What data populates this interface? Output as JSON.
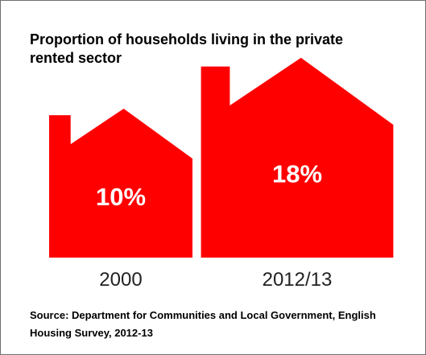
{
  "chart_data": {
    "type": "pictogram",
    "title": "Proportion of households living in the private rented sector",
    "categories": [
      "2000",
      "2012/13"
    ],
    "values": [
      10,
      18
    ],
    "value_labels": [
      "10%",
      "18%"
    ],
    "unit": "%",
    "source": "Source: Department for Communities and Local Government, English Housing Survey, 2012-13",
    "color": "#ff0000"
  }
}
